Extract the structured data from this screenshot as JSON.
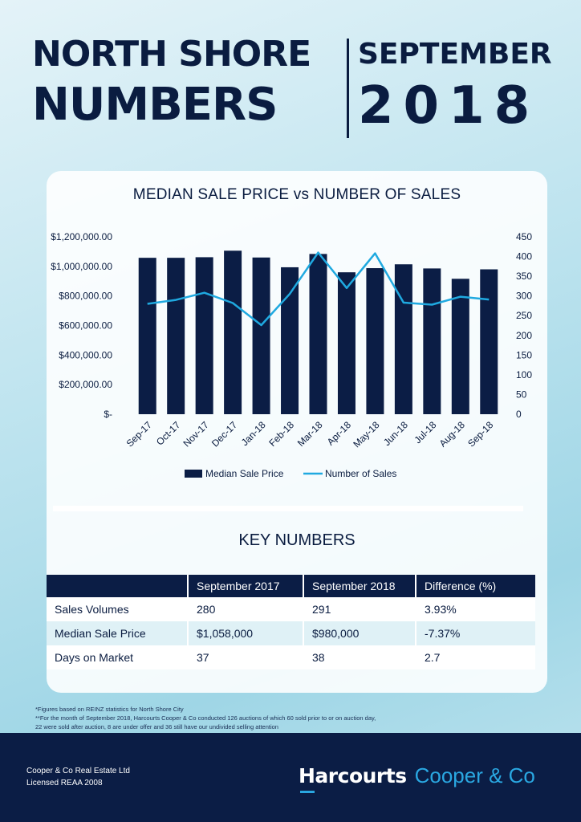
{
  "header": {
    "title_line1": "NORTH SHORE",
    "title_line2": "NUMBERS",
    "month": "SEPTEMBER",
    "year": "2018"
  },
  "chart_data": {
    "type": "bar",
    "title": "MEDIAN SALE PRICE vs NUMBER OF SALES",
    "categories": [
      "Sep-17",
      "Oct-17",
      "Nov-17",
      "Dec-17",
      "Jan-18",
      "Feb-18",
      "Mar-18",
      "Apr-18",
      "May-18",
      "Jun-18",
      "Jul-18",
      "Aug-18",
      "Sep-18"
    ],
    "series": [
      {
        "name": "Median Sale Price",
        "type": "bar",
        "axis": "left",
        "color": "#0b1d45",
        "values": [
          1058000,
          1058000,
          1062000,
          1106000,
          1060000,
          994000,
          1084000,
          960000,
          988000,
          1014000,
          986000,
          916000,
          980000
        ]
      },
      {
        "name": "Number of Sales",
        "type": "line",
        "axis": "right",
        "color": "#1fa9e0",
        "values": [
          280,
          290,
          308,
          282,
          226,
          305,
          410,
          320,
          408,
          283,
          278,
          298,
          291
        ]
      }
    ],
    "y_left": {
      "range": [
        0,
        1200000
      ],
      "ticks": [
        0,
        200000,
        400000,
        600000,
        800000,
        1000000,
        1200000
      ],
      "tick_labels": [
        "$-",
        "$200,000.00",
        "$400,000.00",
        "$600,000.00",
        "$800,000.00",
        "$1,000,000.00",
        "$1,200,000.00"
      ]
    },
    "y_right": {
      "range": [
        0,
        450
      ],
      "ticks": [
        0,
        50,
        100,
        150,
        200,
        250,
        300,
        350,
        400,
        450
      ],
      "tick_labels": [
        "0",
        "50",
        "100",
        "150",
        "200",
        "250",
        "300",
        "350",
        "400",
        "450"
      ]
    },
    "grid": false,
    "legend_position": "bottom"
  },
  "key_numbers": {
    "title": "KEY NUMBERS",
    "columns": [
      "",
      "September 2017",
      "September 2018",
      "Difference (%)"
    ],
    "rows": [
      [
        "Sales Volumes",
        "280",
        "291",
        "3.93%"
      ],
      [
        "Median Sale Price",
        "$1,058,000",
        "$980,000",
        "-7.37%"
      ],
      [
        "Days on Market",
        "37",
        "38",
        "2.7"
      ]
    ]
  },
  "footnotes": {
    "line1": "*Figures based on REINZ statistics for North Shore City",
    "line2": "**For the month of September 2018, Harcourts Cooper & Co conducted 126 auctions of which 60 sold prior to or on auction day,",
    "line3": "22 were sold after auction, 8 are under offer and 36 still have our undivided selling attention"
  },
  "footer": {
    "company_line1": "Cooper & Co Real Estate Ltd",
    "company_line2": "Licensed REAA 2008",
    "brand_primary": "Harcourts",
    "brand_secondary": "Cooper & Co"
  }
}
